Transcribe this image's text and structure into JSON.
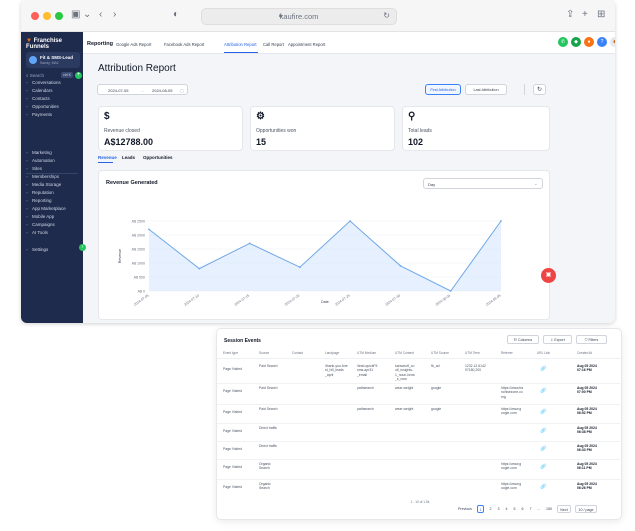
{
  "browser": {
    "url": "kaufire.com"
  },
  "sidebar": {
    "brand": "Franchise Funnels",
    "account_name": "Fit & SMS-Lead",
    "account_sub": "Sandy, MA1",
    "search_label": "Search",
    "search_shortcut": "ctrl K",
    "items": [
      {
        "label": "Conversations",
        "icon": "chat-icon"
      },
      {
        "label": "Calendars",
        "icon": "calendar-icon"
      },
      {
        "label": "Contacts",
        "icon": "contacts-icon"
      },
      {
        "label": "Opportunities",
        "icon": "funnel-icon"
      },
      {
        "label": "Payments",
        "icon": "payments-icon"
      },
      {
        "label": "Marketing",
        "icon": "megaphone-icon"
      },
      {
        "label": "Automation",
        "icon": "automation-icon"
      },
      {
        "label": "Sites",
        "icon": "globe-icon"
      },
      {
        "label": "Memberships",
        "icon": "membership-icon"
      },
      {
        "label": "Media Storage",
        "icon": "media-icon"
      },
      {
        "label": "Reputation",
        "icon": "star-icon"
      },
      {
        "label": "Reporting",
        "icon": "chart-icon"
      },
      {
        "label": "App Marketplace",
        "icon": "grid-icon"
      },
      {
        "label": "Mobile App",
        "icon": "mobile-icon"
      },
      {
        "label": "Campaigns",
        "icon": "campaign-icon"
      },
      {
        "label": "AI Tools",
        "icon": "ai-icon"
      },
      {
        "label": "Settings",
        "icon": "gear-icon"
      }
    ]
  },
  "topbar": {
    "title": "Reporting",
    "tabs": [
      {
        "label": "Google Ads Report",
        "active": false
      },
      {
        "label": "Facebook Ads Report",
        "active": false
      },
      {
        "label": "Attribution Report",
        "active": true
      },
      {
        "label": "Call Report",
        "active": false
      },
      {
        "label": "Appointment Report",
        "active": false
      }
    ]
  },
  "main": {
    "page_title": "Attribution Report",
    "date_start": "2024-07-05",
    "date_sep": "→",
    "date_end": "2024-08-05",
    "first_attribution": "First Attribution",
    "last_attribution": "Last Attribution",
    "cards": [
      {
        "icon": "$",
        "label": "Revenue closed",
        "value": "A$12788.00"
      },
      {
        "icon": "⚙",
        "label": "Opportunities won",
        "value": "15"
      },
      {
        "icon": "⚲",
        "label": "Total leads",
        "value": "102"
      }
    ],
    "sub_tabs": [
      {
        "label": "Revenue",
        "active": true
      },
      {
        "label": "Leads",
        "active": false
      },
      {
        "label": "Opportunities",
        "active": false
      }
    ],
    "chart_title": "Revenue Generated",
    "chart_period": "Day"
  },
  "chart_data": {
    "type": "area",
    "title": "Revenue Generated",
    "xlabel": "Date",
    "ylabel": "Revenue",
    "categories": [
      "2024-07-05",
      "2024-07-10",
      "2024-07-15",
      "2024-07-20",
      "2024-07-25",
      "2024-07-30",
      "2024-08-04",
      "2024-08-05"
    ],
    "series": [
      {
        "values": [
          2200,
          800,
          1700,
          850,
          2600,
          900,
          0,
          2650
        ]
      }
    ],
    "ylim": [
      0,
      2500
    ],
    "yticks": [
      "A$ 0",
      "A$ 500",
      "A$ 1000",
      "A$ 1500",
      "A$ 2000",
      "A$ 2500"
    ],
    "grid": true,
    "color": "#6ea8e6"
  },
  "session_events": {
    "title": "Session Events",
    "buttons": [
      "Columns",
      "Export",
      "Filters"
    ],
    "columns": [
      "Event type",
      "Source",
      "Contact",
      "Landpage",
      "UTM Medium",
      "UTM Content",
      "UTM Source",
      "UTM Term",
      "Referrer",
      "URL Link",
      "Created At"
    ],
    "rows": [
      {
        "event": "Page Visited",
        "source": "Paid Search",
        "landpage": "/thank-you-fore\nst_hill_leads\n_april",
        "utm_medium": "/lead-quickF5\nsms-apr31\n_email",
        "utm_content": "kanvaruff_co\nolt_insights-\n1_noun-brow\n_s_now",
        "utm_source": "fb_ad",
        "utm_term": "1232.12.6142\n97180,200",
        "referrer": "",
        "link": true,
        "created": "Aug 05 2024\n07:16 PM"
      },
      {
        "event": "Page Visited",
        "source": "Paid Search",
        "landpage": "",
        "utm_medium": "pathsearch",
        "utm_content": "wear-weight",
        "utm_source": "google",
        "utm_term": "",
        "referrer": "https://www.fra\nnchisezone.co\nmg",
        "link": true,
        "created": "Aug 05 2024\n07:00 PM"
      },
      {
        "event": "Page Visited",
        "source": "Paid Search",
        "landpage": "",
        "utm_medium": "pathsearch",
        "utm_content": "wear-weight",
        "utm_source": "google",
        "utm_term": "",
        "referrer": "https://www.g\noogle.com",
        "link": true,
        "created": "Aug 05 2024\n06:52 PM"
      },
      {
        "event": "Page Visited",
        "source": "Direct traffic",
        "landpage": "",
        "utm_medium": "",
        "utm_content": "",
        "utm_source": "",
        "utm_term": "",
        "referrer": "",
        "link": true,
        "created": "Aug 05 2024\n06:38 PM"
      },
      {
        "event": "Page Visited",
        "source": "Direct traffic",
        "landpage": "",
        "utm_medium": "",
        "utm_content": "",
        "utm_source": "",
        "utm_term": "",
        "referrer": "",
        "link": true,
        "created": "Aug 05 2024\n06:33 PM"
      },
      {
        "event": "Page Visited",
        "source": "Organic\nSearch",
        "landpage": "",
        "utm_medium": "",
        "utm_content": "",
        "utm_source": "",
        "utm_term": "",
        "referrer": "https://www.g\noogle.com",
        "link": true,
        "created": "Aug 05 2024\n06:11 PM"
      },
      {
        "event": "Page Visited",
        "source": "Organic\nSearch",
        "landpage": "",
        "utm_medium": "",
        "utm_content": "",
        "utm_source": "",
        "utm_term": "",
        "referrer": "https://www.g\noogle.com",
        "link": true,
        "created": "Aug 05 2024\n06:26 PM"
      }
    ],
    "footer": "1 - 10 of 1.5k",
    "pagination": {
      "previous": "Previous",
      "pages": [
        "1",
        "2",
        "3",
        "4",
        "5",
        "6",
        "7",
        "...",
        "150"
      ],
      "next": "Next",
      "per_page": "10 / page"
    }
  }
}
